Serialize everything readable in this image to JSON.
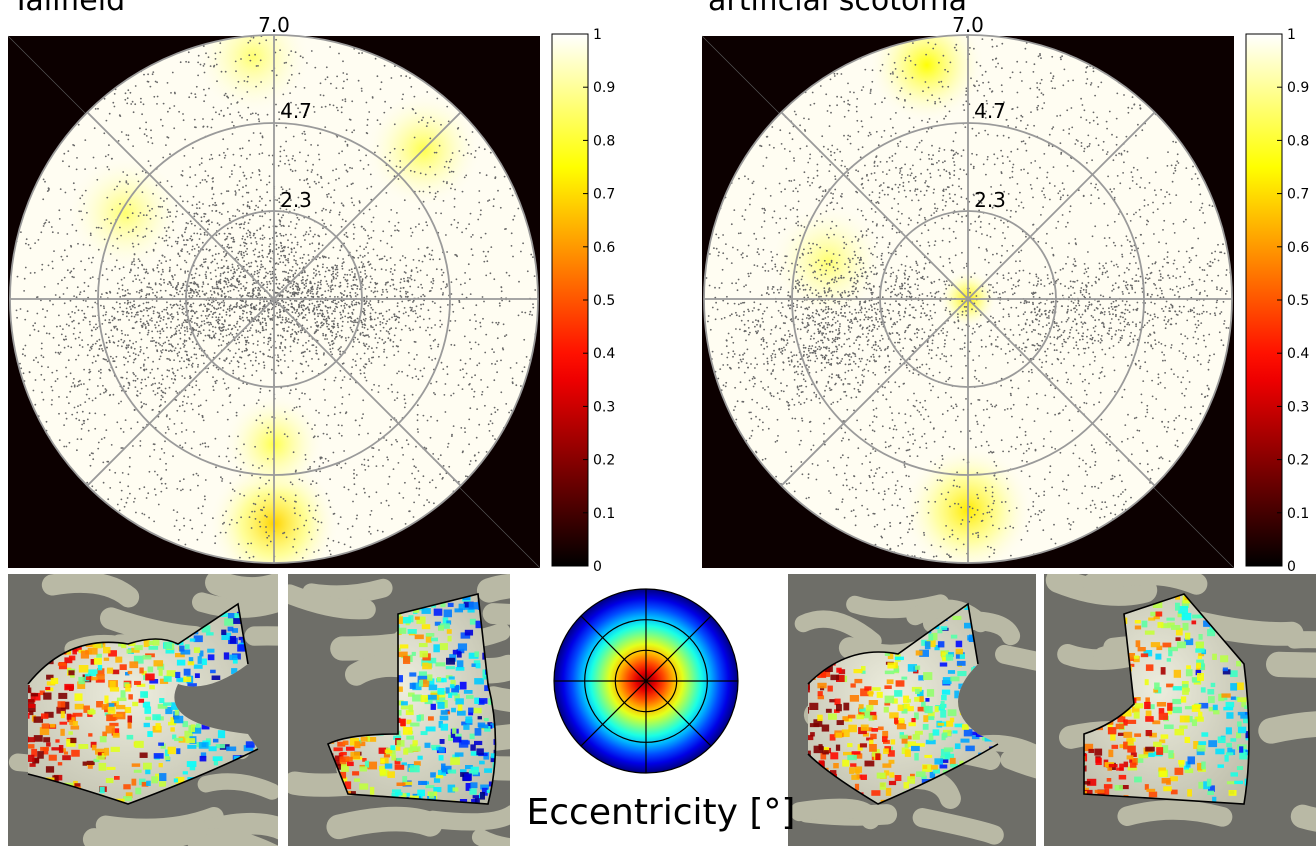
{
  "panels": [
    {
      "title": "Tallfield",
      "rings": [
        "7.0",
        "4.7",
        "2.3"
      ],
      "hotspots": [
        {
          "angle_deg": 270,
          "r": 0.85,
          "strength": 0.45,
          "spread": 0.45
        },
        {
          "angle_deg": 270,
          "r": 0.55,
          "strength": 0.25,
          "spread": 0.35
        },
        {
          "angle_deg": 45,
          "r": 0.8,
          "strength": 0.25,
          "spread": 0.4
        },
        {
          "angle_deg": 150,
          "r": 0.65,
          "strength": 0.2,
          "spread": 0.4
        },
        {
          "angle_deg": 95,
          "r": 0.92,
          "strength": 0.2,
          "spread": 0.4
        }
      ],
      "point_clusters": [
        {
          "angle_deg": 180,
          "r": 0.2,
          "count": 800
        },
        {
          "angle_deg": 0,
          "r": 0.15,
          "count": 600
        },
        {
          "angle_deg": 200,
          "r": 0.55,
          "count": 400
        },
        {
          "angle_deg": 110,
          "r": 0.3,
          "count": 300
        },
        {
          "angle_deg": 350,
          "r": 0.3,
          "count": 350
        }
      ]
    },
    {
      "title": "artificial scotoma",
      "rings": [
        "7.0",
        "4.7",
        "2.3"
      ],
      "hotspots": [
        {
          "angle_deg": 0,
          "r": 0.0,
          "strength": 0.4,
          "spread": 0.2
        },
        {
          "angle_deg": 270,
          "r": 0.8,
          "strength": 0.4,
          "spread": 0.45
        },
        {
          "angle_deg": 100,
          "r": 0.9,
          "strength": 0.35,
          "spread": 0.4
        },
        {
          "angle_deg": 165,
          "r": 0.55,
          "strength": 0.2,
          "spread": 0.4
        }
      ],
      "point_clusters": [
        {
          "angle_deg": 180,
          "r": 0.45,
          "count": 600
        },
        {
          "angle_deg": 350,
          "r": 0.4,
          "count": 400
        },
        {
          "angle_deg": 200,
          "r": 0.6,
          "count": 400
        },
        {
          "angle_deg": 0,
          "r": 0.75,
          "count": 200
        },
        {
          "angle_deg": 120,
          "r": 0.5,
          "count": 200
        }
      ]
    }
  ],
  "colorbar": {
    "ticks": [
      "1",
      "0.9",
      "0.8",
      "0.7",
      "0.6",
      "0.5",
      "0.4",
      "0.3",
      "0.2",
      "0.1",
      "0"
    ],
    "colormap": "hot"
  },
  "eccentricity_legend": {
    "title": "Eccentricity [°]",
    "colormap": "jet"
  },
  "colors": {
    "background_outside": "#0c0000",
    "grid": "#9a9a9a",
    "points": "#666666",
    "cortex_light": "#b9b9a5",
    "cortex_dark": "#6e6e68"
  }
}
